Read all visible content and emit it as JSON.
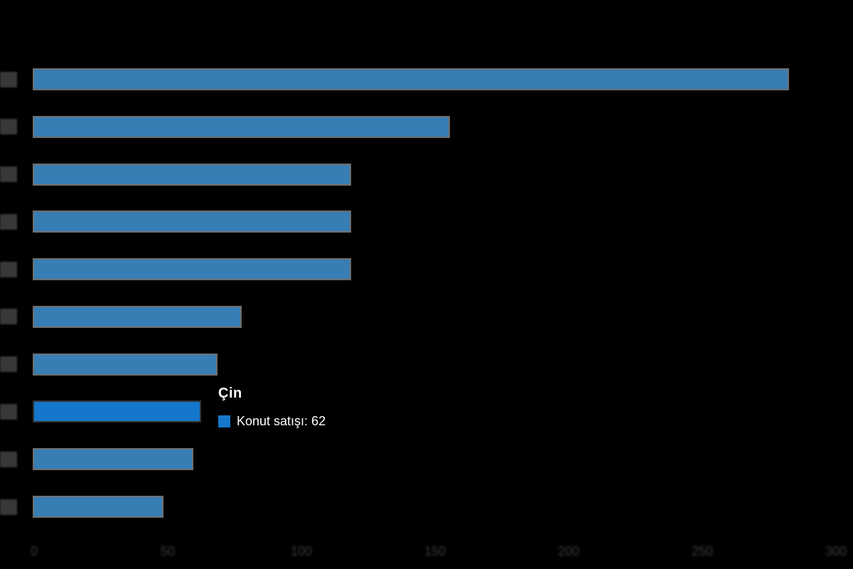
{
  "chart_data": {
    "type": "bar",
    "orientation": "horizontal",
    "title": "",
    "categories": [
      "",
      "",
      "",
      "",
      "",
      "",
      "",
      "Çin",
      "",
      ""
    ],
    "series": [
      {
        "name": "Konut satışı",
        "values": [
          282,
          155,
          118,
          118,
          118,
          77,
          68,
          62,
          59,
          48
        ]
      }
    ],
    "xlim": [
      0,
      300
    ],
    "x_ticks": [
      0,
      50,
      100,
      150,
      200,
      250,
      300
    ],
    "grid": false,
    "legend_position": "none",
    "highlighted_index": 7,
    "category_labels_obscured": true
  },
  "tooltip": {
    "title": "Çin",
    "label": "Konut satışı",
    "value": "62",
    "text": "Konut satışı: 62"
  },
  "colors": {
    "background": "#000000",
    "bar_fill": "#377eb5",
    "bar_border": "#6e6e6e",
    "bar_highlight_fill": "#1577cb",
    "bar_highlight_border": "#333333",
    "axis_label_color": "#3a3a3a",
    "category_block_color": "#383838",
    "tooltip_text_color": "#ffffff"
  }
}
